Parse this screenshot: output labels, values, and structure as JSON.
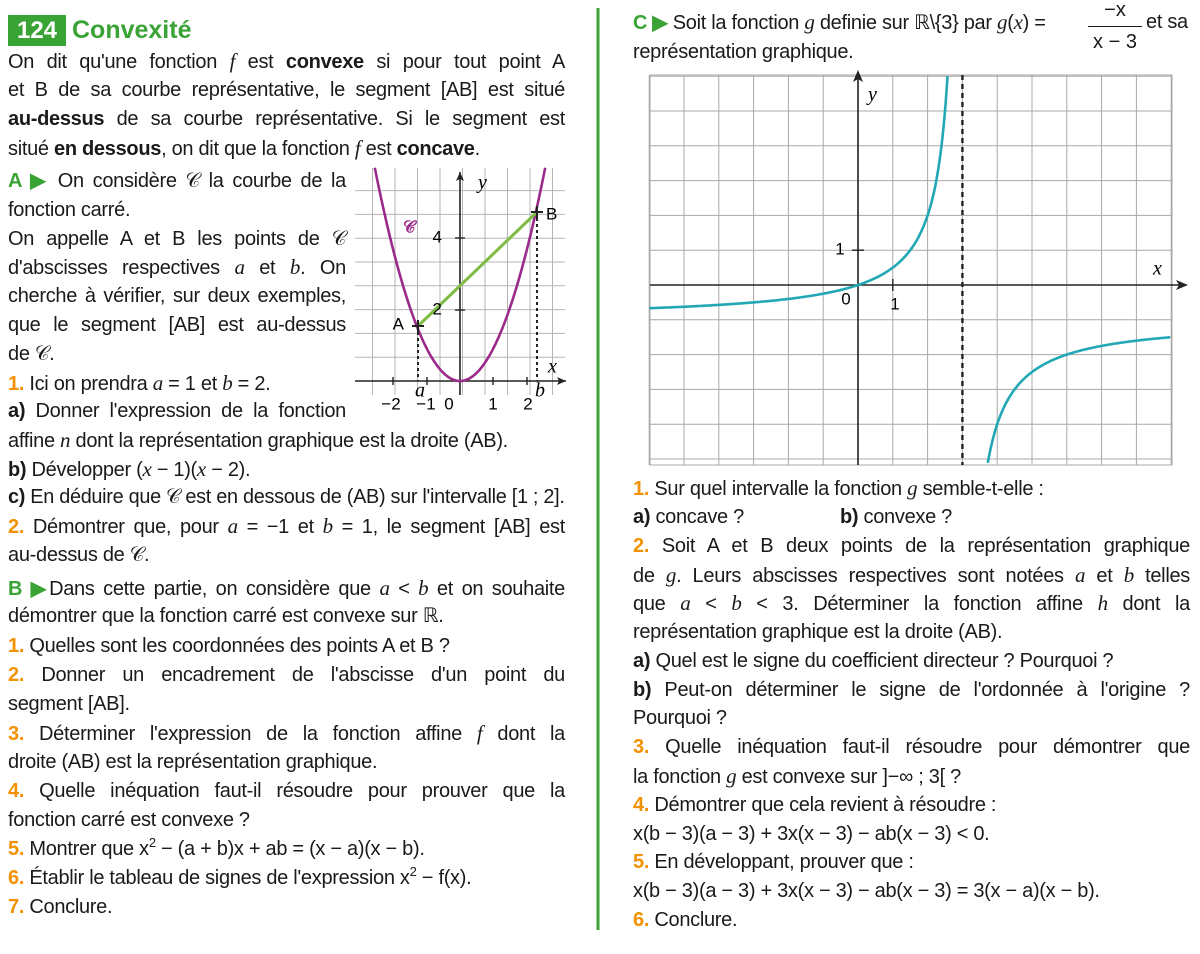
{
  "left": {
    "number": "124",
    "title": "Convexité",
    "lines": [
      [
        "On dit qu'une fonction ",
        "f",
        " est ",
        "convexe",
        " si pour tout point A"
      ],
      [
        "et B de sa courbe représentative, le segment [AB] est situé"
      ],
      [
        "au-dessus",
        " de sa courbe représentative. Si le segment est"
      ],
      [
        "situé ",
        "en dessous",
        ", on dit que la fonction ",
        "f",
        " est ",
        "concave",
        "."
      ],
      [
        "A ▶",
        " On considère 𝒞 la courbe de la"
      ],
      [
        "fonction carré."
      ],
      [
        "On appelle A et B les points de 𝒞"
      ],
      [
        "d'abscisses respectives ",
        "a",
        " et ",
        "b",
        ". On"
      ],
      [
        "cherche à vérifier, sur deux exemples,"
      ],
      [
        "que le segment [AB] est au-dessus"
      ],
      [
        "de 𝒞."
      ],
      [
        "1.",
        " Ici on prendra ",
        "a",
        " = 1 et ",
        "b",
        " = 2."
      ],
      [
        "a)",
        " Donner l'expression de la fonction"
      ],
      [
        "affine ",
        "n",
        " dont la représentation graphique est la droite (AB)."
      ],
      [
        "b)",
        " Développer (",
        "x",
        " − 1)(",
        "x",
        " − 2)."
      ],
      [
        "c)",
        " En déduire que 𝒞 est en dessous de (AB) sur l'intervalle [1 ; 2]."
      ],
      [
        "2.",
        " Démontrer que, pour ",
        "a",
        " = −1 et ",
        "b",
        " = 1, le segment [AB] est"
      ],
      [
        "au-dessus de 𝒞."
      ],
      [
        "B ▶",
        "Dans cette partie, on considère que ",
        "a",
        " < ",
        "b",
        " et on souhaite"
      ],
      [
        "démontrer que la fonction carré est convexe sur ℝ."
      ],
      [
        "1.",
        " Quelles sont les coordonnées des points A et B ?"
      ],
      [
        "2.",
        " Donner un encadrement de l'abscisse d'un point du"
      ],
      [
        "segment [AB]."
      ],
      [
        "3.",
        " Déterminer l'expression de la fonction affine ",
        "f",
        " dont la"
      ],
      [
        "droite (AB) est la représentation graphique."
      ],
      [
        "4.",
        " Quelle inéquation faut-il résoudre pour prouver que la"
      ],
      [
        "fonction carré est convexe ?"
      ],
      [
        "5.",
        " Montrer que x",
        "2",
        " − (a + b)x + ab = (x − a)(x − b)."
      ],
      [
        "6.",
        " Établir le tableau de signes de l'expression x",
        "2",
        " − f(x)."
      ],
      [
        "7.",
        " Conclure."
      ]
    ],
    "graph": {
      "y": "y",
      "curve": "𝒞",
      "ticks_y": [
        "4",
        "2"
      ],
      "A": "A",
      "B": "B",
      "x": "x",
      "a": "a",
      "b": "b",
      "ticks_x": [
        "−2",
        "−1",
        "0",
        "1",
        "2"
      ]
    }
  },
  "right": {
    "header": {
      "parts": [
        "C ▶",
        " Soit la fonction ",
        "g",
        " definie sur ℝ\\{3} par ",
        "g",
        "(",
        "x",
        ") ="
      ],
      "numerator": "−x",
      "denominator": "x − 3",
      "end": "et sa"
    },
    "lines": [
      [
        "représentation graphique."
      ],
      [
        "1.",
        " Sur quel intervalle la fonction ",
        "g",
        " semble-t-elle :"
      ],
      [
        "a)",
        " concave ?"
      ],
      [
        "b)",
        " convexe ?"
      ],
      [
        "2.",
        " Soit A et B deux points de la représentation graphique"
      ],
      [
        "de ",
        "g",
        ". Leurs abscisses respectives sont notées ",
        "a",
        " et ",
        "b",
        " telles"
      ],
      [
        "que ",
        "a",
        " < ",
        "b",
        " < 3. Déterminer la fonction affine ",
        "h",
        " dont la"
      ],
      [
        "représentation graphique est la droite (AB)."
      ],
      [
        "a)",
        " Quel est le signe du coefficient directeur ? Pourquoi ?"
      ],
      [
        "b)",
        " Peut-on déterminer le signe de l'ordonnée à l'origine ?"
      ],
      [
        "Pourquoi ?"
      ],
      [
        "3.",
        " Quelle inéquation faut-il résoudre pour démontrer que"
      ],
      [
        "la fonction ",
        "g",
        " est convexe sur ]−∞ ; 3[ ?"
      ],
      [
        "4.",
        " Démontrer que cela revient à résoudre :"
      ],
      [
        "x(b − 3)(a − 3) + 3x(x − 3) − ab(x − 3) < 0."
      ],
      [
        "5.",
        " En développant, prouver que :"
      ],
      [
        "x(b − 3)(a − 3) + 3x(x − 3) − ab(x − 3) = 3(x − a)(x − b)."
      ],
      [
        "6.",
        " Conclure."
      ]
    ],
    "graph": {
      "y": "y",
      "tick_y": "1",
      "origin": "0",
      "tick_x": "1",
      "x": "x"
    }
  }
}
